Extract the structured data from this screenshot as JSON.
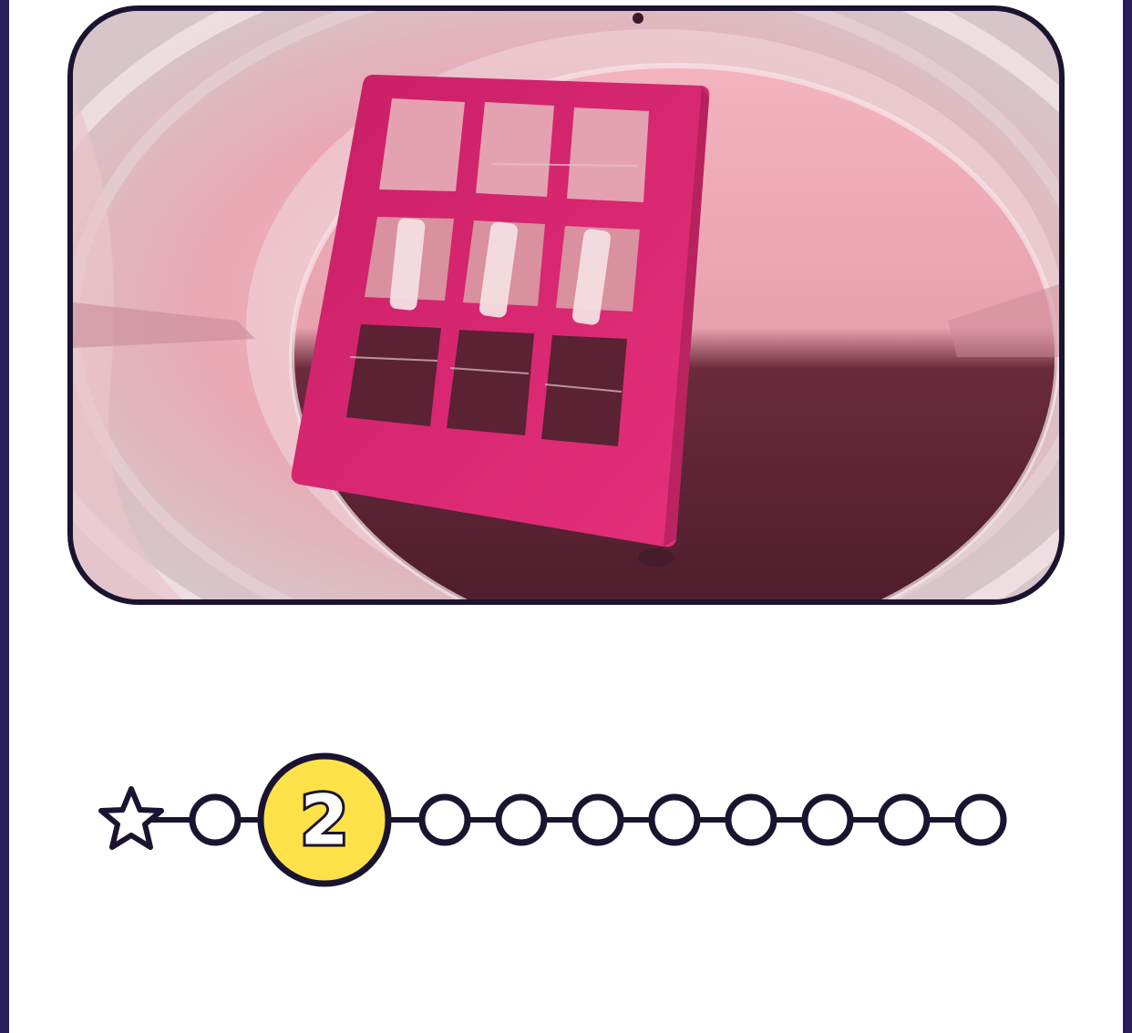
{
  "photo": {
    "name": "culture-well-photo",
    "colors": {
      "medium_light": "#f2b3bd",
      "medium_dark": "#5a2233",
      "scaffold": "#d4306f",
      "scaffold_dark": "#a81f55",
      "dish_rim": "#e9d3d7",
      "frame": "#1b1430"
    }
  },
  "progress": {
    "current_step_label": "2",
    "current_step_index": 1,
    "total_dots": 11,
    "start_icon": "star-icon",
    "colors": {
      "stroke": "#1b1430",
      "active_fill": "#ffe24a",
      "dot_fill": "#ffffff"
    }
  }
}
